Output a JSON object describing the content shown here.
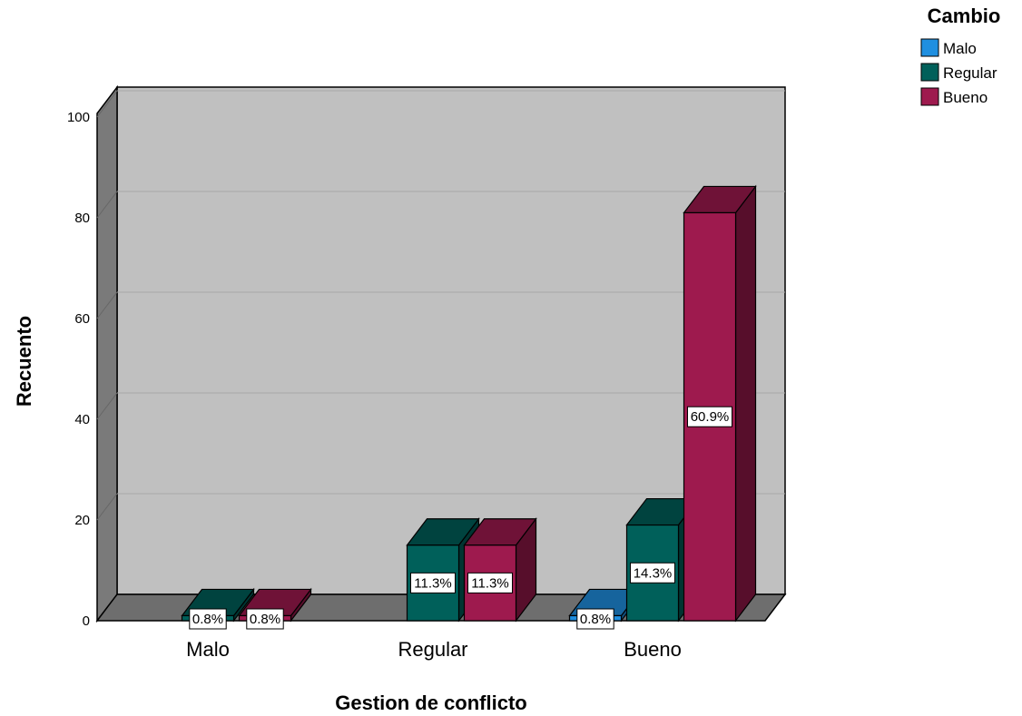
{
  "chart_data": {
    "type": "bar",
    "categories": [
      "Malo",
      "Regular",
      "Bueno"
    ],
    "series": [
      {
        "name": "Malo",
        "color": "#1f8fe0",
        "values": [
          null,
          null,
          1
        ],
        "labels": [
          null,
          null,
          "0.8%"
        ]
      },
      {
        "name": "Regular",
        "color": "#00605a",
        "values": [
          1,
          15,
          19
        ],
        "labels": [
          "0.8%",
          "11.3%",
          "14.3%"
        ]
      },
      {
        "name": "Bueno",
        "color": "#9e1a4e",
        "values": [
          1,
          15,
          81
        ],
        "labels": [
          "0.8%",
          "11.3%",
          "60.9%"
        ]
      }
    ],
    "xlabel": "Gestion de conflicto",
    "ylabel": "Recuento",
    "ylim": [
      0,
      100
    ],
    "yticks": [
      0,
      20,
      40,
      60,
      80,
      100
    ],
    "legend": {
      "title": "Cambio",
      "position": "top-right"
    },
    "grid": true,
    "style": "3d"
  }
}
